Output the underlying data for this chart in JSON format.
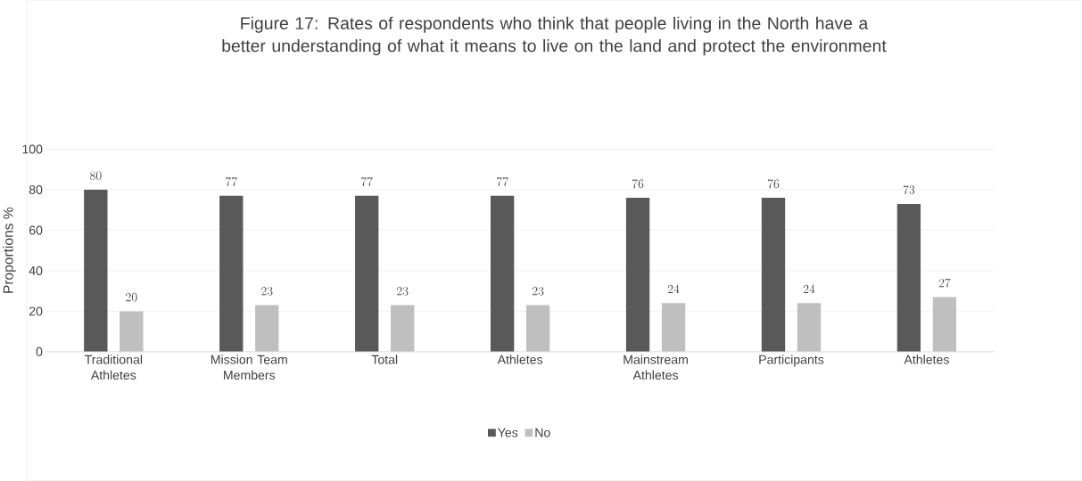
{
  "chart_data": {
    "type": "bar",
    "title": "Figure 17: Rates of respondents who think that people living in the North have a better understanding of what it means to live on the land and protect the environment",
    "ylabel": "Proportions %",
    "categories": [
      "Traditional Athletes",
      "Mission Team Members",
      "Total",
      "Athletes",
      "Mainstream Athletes",
      "Participants",
      "Athletes"
    ],
    "series": [
      {
        "name": "Yes",
        "color": "#595959",
        "values": [
          80,
          77,
          77,
          77,
          76,
          76,
          73
        ]
      },
      {
        "name": "No",
        "color": "#bfbfbf",
        "values": [
          20,
          23,
          23,
          23,
          24,
          24,
          27
        ]
      }
    ],
    "ylim": [
      0,
      100
    ],
    "yticks": [
      0,
      20,
      40,
      60,
      80,
      100
    ],
    "grid": "y",
    "legend": "bottom",
    "data_labels": true
  }
}
